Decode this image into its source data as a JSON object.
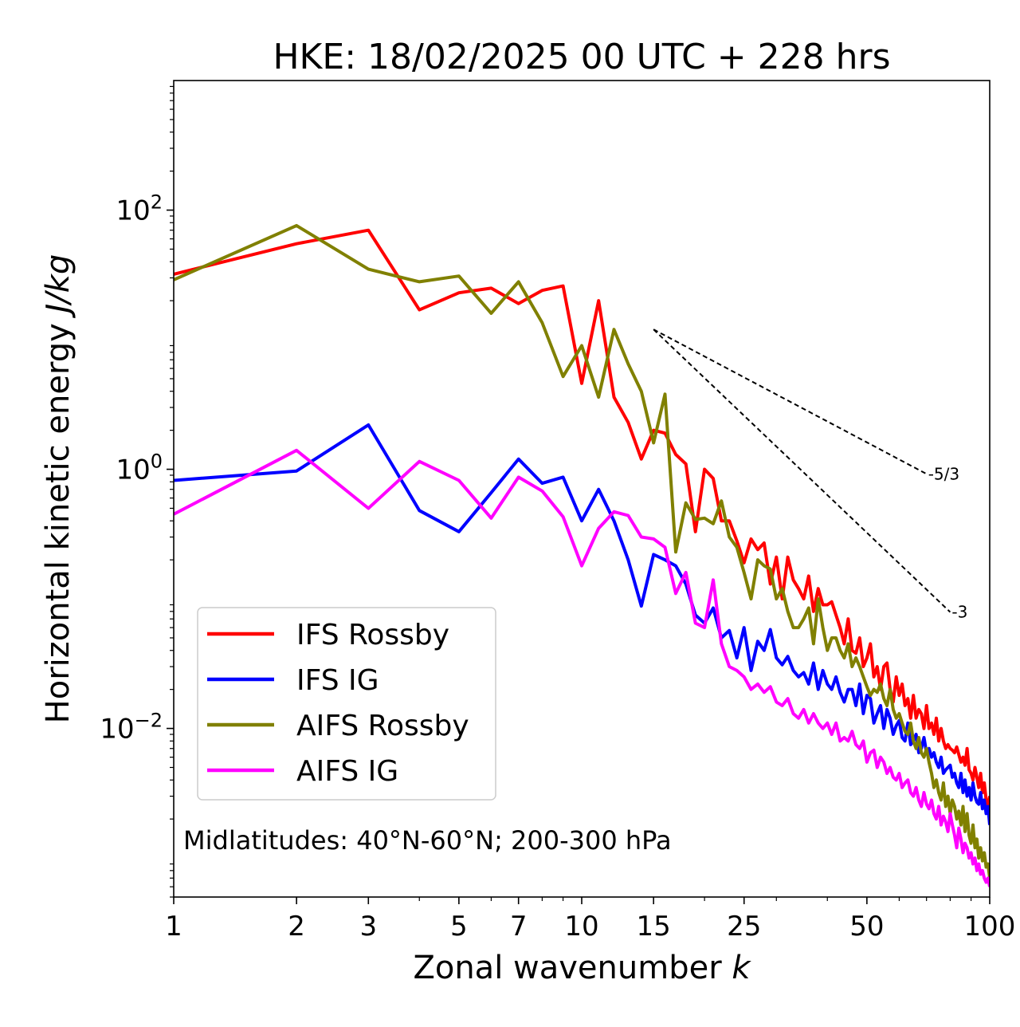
{
  "chart_data": {
    "type": "line",
    "title": "HKE: 18/02/2025 00 UTC + 228 hrs",
    "xlabel": "Zonal wavenumber",
    "xlabel_var": "k",
    "ylabel": "Horizontal kinetic energy",
    "ylabel_unit": "J/kg",
    "xscale": "log",
    "yscale": "log",
    "xlim": [
      1,
      100
    ],
    "ylim": [
      0.0005,
      1000
    ],
    "x_ticks": [
      1,
      2,
      3,
      5,
      7,
      10,
      15,
      25,
      50,
      100
    ],
    "x_tick_labels": [
      "1",
      "2",
      "3",
      "5",
      "7",
      "10",
      "15",
      "25",
      "50",
      "100"
    ],
    "y_ticks": [
      0.01,
      1,
      100
    ],
    "y_tick_labels": [
      {
        "base": "10",
        "exp": "−2"
      },
      {
        "base": "10",
        "exp": "0"
      },
      {
        "base": "10",
        "exp": "2"
      }
    ],
    "annotation": "Midlatitudes: 40°N-60°N; 200-300 hPa",
    "legend_position": "lower-left",
    "reference_lines": [
      {
        "label": "-5/3",
        "slope": -1.6667,
        "x_start": 15,
        "y_start": 12,
        "x_end": 70
      },
      {
        "label": "-3",
        "slope": -3,
        "x_start": 15,
        "y_start": 12,
        "x_end": 80
      }
    ],
    "series": [
      {
        "name": "IFS Rossby",
        "color": "#ff0000",
        "x": [
          1,
          2,
          3,
          4,
          5,
          6,
          7,
          8,
          9,
          10,
          11,
          12,
          13,
          14,
          15,
          16,
          17,
          18,
          19,
          20,
          21,
          22,
          23,
          24,
          25,
          26,
          27,
          28,
          29,
          30,
          31,
          32,
          33,
          34,
          35,
          36,
          37,
          38,
          39,
          40,
          41,
          42,
          43,
          44,
          45,
          46,
          47,
          48,
          49,
          50,
          51,
          52,
          53,
          54,
          55,
          56,
          57,
          58,
          59,
          60,
          61,
          62,
          63,
          64,
          65,
          66,
          67,
          68,
          69,
          70,
          71,
          72,
          73,
          74,
          75,
          76,
          77,
          78,
          79,
          80,
          81,
          82,
          83,
          84,
          85,
          86,
          87,
          88,
          89,
          90,
          91,
          92,
          93,
          94,
          95,
          96,
          97,
          98,
          99,
          100
        ],
        "y": [
          32,
          55,
          70,
          17,
          23,
          25,
          19,
          24,
          26,
          4.6,
          20,
          3.6,
          2.3,
          1.2,
          2.0,
          1.9,
          1.3,
          1.1,
          0.33,
          1.0,
          0.85,
          0.4,
          0.4,
          0.28,
          0.19,
          0.29,
          0.24,
          0.27,
          0.13,
          0.21,
          0.1,
          0.21,
          0.14,
          0.12,
          0.1,
          0.15,
          0.08,
          0.12,
          0.09,
          0.09,
          0.095,
          0.075,
          0.06,
          0.045,
          0.07,
          0.04,
          0.038,
          0.05,
          0.03,
          0.035,
          0.045,
          0.025,
          0.03,
          0.02,
          0.03,
          0.032,
          0.02,
          0.016,
          0.025,
          0.018,
          0.022,
          0.015,
          0.017,
          0.012,
          0.018,
          0.012,
          0.014,
          0.013,
          0.01,
          0.015,
          0.01,
          0.011,
          0.009,
          0.012,
          0.008,
          0.01,
          0.008,
          0.007,
          0.0075,
          0.007,
          0.0068,
          0.0065,
          0.0072,
          0.0063,
          0.0055,
          0.006,
          0.0052,
          0.007,
          0.0048,
          0.0045,
          0.004,
          0.005,
          0.0042,
          0.0035,
          0.0045,
          0.0032,
          0.0038,
          0.0028,
          0.0025,
          0.003
        ]
      },
      {
        "name": "IFS IG",
        "color": "#0000ff",
        "x": [
          1,
          2,
          3,
          4,
          5,
          6,
          7,
          8,
          9,
          10,
          11,
          12,
          13,
          14,
          15,
          16,
          17,
          18,
          19,
          20,
          21,
          22,
          23,
          24,
          25,
          26,
          27,
          28,
          29,
          30,
          31,
          32,
          33,
          34,
          35,
          36,
          37,
          38,
          39,
          40,
          41,
          42,
          43,
          44,
          45,
          46,
          47,
          48,
          49,
          50,
          51,
          52,
          53,
          54,
          55,
          56,
          57,
          58,
          59,
          60,
          61,
          62,
          63,
          64,
          65,
          66,
          67,
          68,
          69,
          70,
          71,
          72,
          73,
          74,
          75,
          76,
          77,
          78,
          79,
          80,
          81,
          82,
          83,
          84,
          85,
          86,
          87,
          88,
          89,
          90,
          91,
          92,
          93,
          94,
          95,
          96,
          97,
          98,
          99,
          100
        ],
        "y": [
          0.82,
          0.97,
          2.2,
          0.48,
          0.33,
          0.66,
          1.2,
          0.78,
          0.87,
          0.4,
          0.7,
          0.4,
          0.2,
          0.088,
          0.22,
          0.2,
          0.18,
          0.13,
          0.075,
          0.065,
          0.085,
          0.05,
          0.057,
          0.035,
          0.06,
          0.028,
          0.047,
          0.04,
          0.058,
          0.035,
          0.031,
          0.036,
          0.028,
          0.025,
          0.027,
          0.022,
          0.032,
          0.02,
          0.028,
          0.022,
          0.02,
          0.025,
          0.019,
          0.016,
          0.02,
          0.02,
          0.015,
          0.022,
          0.013,
          0.018,
          0.017,
          0.011,
          0.013,
          0.015,
          0.01,
          0.014,
          0.012,
          0.009,
          0.0105,
          0.0115,
          0.0085,
          0.008,
          0.011,
          0.0075,
          0.008,
          0.009,
          0.0065,
          0.007,
          0.0085,
          0.0065,
          0.007,
          0.006,
          0.0065,
          0.0055,
          0.005,
          0.006,
          0.0045,
          0.0048,
          0.005,
          0.0052,
          0.0042,
          0.0045,
          0.0038,
          0.0035,
          0.0045,
          0.0032,
          0.004,
          0.003,
          0.0035,
          0.0028,
          0.0038,
          0.003,
          0.0027,
          0.0026,
          0.0032,
          0.0024,
          0.0028,
          0.0022,
          0.0025,
          0.0018
        ]
      },
      {
        "name": "AIFS Rossby",
        "color": "#808000",
        "x": [
          1,
          2,
          3,
          4,
          5,
          6,
          7,
          8,
          9,
          10,
          11,
          12,
          13,
          14,
          15,
          16,
          17,
          18,
          19,
          20,
          21,
          22,
          23,
          24,
          25,
          26,
          27,
          28,
          29,
          30,
          31,
          32,
          33,
          34,
          35,
          36,
          37,
          38,
          39,
          40,
          41,
          42,
          43,
          44,
          45,
          46,
          47,
          48,
          49,
          50,
          51,
          52,
          53,
          54,
          55,
          56,
          57,
          58,
          59,
          60,
          61,
          62,
          63,
          64,
          65,
          66,
          67,
          68,
          69,
          70,
          71,
          72,
          73,
          74,
          75,
          76,
          77,
          78,
          79,
          80,
          81,
          82,
          83,
          84,
          85,
          86,
          87,
          88,
          89,
          90,
          91,
          92,
          93,
          94,
          95,
          96,
          97,
          98,
          99,
          100
        ],
        "y": [
          29,
          76,
          35,
          28,
          31,
          16,
          28,
          13.5,
          5.2,
          9,
          3.6,
          12,
          6.5,
          4,
          1.6,
          3.8,
          0.23,
          0.55,
          0.41,
          0.42,
          0.38,
          0.57,
          0.3,
          0.25,
          0.16,
          0.1,
          0.2,
          0.18,
          0.17,
          0.1,
          0.12,
          0.08,
          0.06,
          0.06,
          0.07,
          0.085,
          0.045,
          0.1,
          0.06,
          0.04,
          0.05,
          0.05,
          0.04,
          0.035,
          0.045,
          0.03,
          0.035,
          0.03,
          0.025,
          0.021,
          0.018,
          0.02,
          0.019,
          0.022,
          0.017,
          0.015,
          0.02,
          0.014,
          0.012,
          0.013,
          0.011,
          0.0095,
          0.009,
          0.011,
          0.008,
          0.007,
          0.0085,
          0.0065,
          0.006,
          0.007,
          0.0055,
          0.0045,
          0.0035,
          0.004,
          0.0032,
          0.0028,
          0.0038,
          0.0025,
          0.003,
          0.0022,
          0.0028,
          0.0025,
          0.002,
          0.0023,
          0.0018,
          0.0025,
          0.0016,
          0.0022,
          0.0015,
          0.0013,
          0.0018,
          0.0012,
          0.0014,
          0.001,
          0.0012,
          0.00095,
          0.0011,
          0.00085,
          0.0009,
          0.0007
        ]
      },
      {
        "name": "AIFS IG",
        "color": "#ff00ff",
        "x": [
          1,
          2,
          3,
          4,
          5,
          6,
          7,
          8,
          9,
          10,
          11,
          12,
          13,
          14,
          15,
          16,
          17,
          18,
          19,
          20,
          21,
          22,
          23,
          24,
          25,
          26,
          27,
          28,
          29,
          30,
          31,
          32,
          33,
          34,
          35,
          36,
          37,
          38,
          39,
          40,
          41,
          42,
          43,
          44,
          45,
          46,
          47,
          48,
          49,
          50,
          51,
          52,
          53,
          54,
          55,
          56,
          57,
          58,
          59,
          60,
          61,
          62,
          63,
          64,
          65,
          66,
          67,
          68,
          69,
          70,
          71,
          72,
          73,
          74,
          75,
          76,
          77,
          78,
          79,
          80,
          81,
          82,
          83,
          84,
          85,
          86,
          87,
          88,
          89,
          90,
          91,
          92,
          93,
          94,
          95,
          96,
          97,
          98,
          99,
          100
        ],
        "y": [
          0.45,
          1.4,
          0.5,
          1.15,
          0.82,
          0.42,
          0.87,
          0.68,
          0.43,
          0.18,
          0.35,
          0.47,
          0.44,
          0.3,
          0.29,
          0.25,
          0.11,
          0.16,
          0.065,
          0.06,
          0.14,
          0.045,
          0.03,
          0.028,
          0.025,
          0.02,
          0.022,
          0.019,
          0.021,
          0.016,
          0.015,
          0.017,
          0.013,
          0.012,
          0.014,
          0.011,
          0.013,
          0.011,
          0.01,
          0.011,
          0.009,
          0.011,
          0.008,
          0.0085,
          0.008,
          0.0095,
          0.0075,
          0.007,
          0.008,
          0.0055,
          0.0065,
          0.0068,
          0.005,
          0.006,
          0.0055,
          0.0045,
          0.005,
          0.0042,
          0.004,
          0.0045,
          0.0035,
          0.0038,
          0.004,
          0.0032,
          0.003,
          0.0035,
          0.0028,
          0.0025,
          0.0032,
          0.0026,
          0.0024,
          0.0028,
          0.0022,
          0.002,
          0.0025,
          0.0018,
          0.0021,
          0.0019,
          0.0016,
          0.0022,
          0.0018,
          0.0015,
          0.0012,
          0.0017,
          0.0014,
          0.0011,
          0.0013,
          0.0012,
          0.001,
          0.0011,
          0.0009,
          0.001,
          0.0008,
          0.0009,
          0.00075,
          0.0008,
          0.0007,
          0.00065,
          0.0007,
          0.0006
        ]
      }
    ]
  }
}
